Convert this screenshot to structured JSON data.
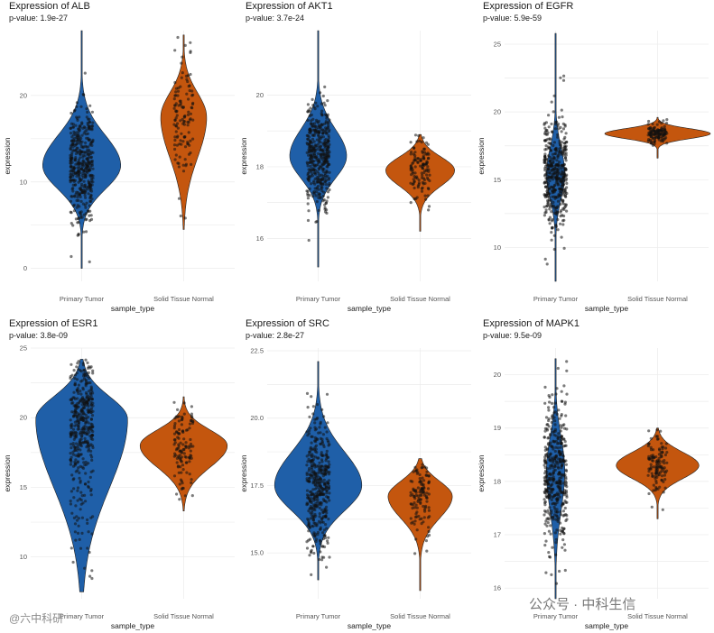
{
  "chart_data": [
    {
      "type": "violin",
      "title": "Expression of ALB",
      "subtitle": "p-value: 1.9e-27",
      "xlabel": "sample_type",
      "ylabel": "expression",
      "categories": [
        "Primary Tumor",
        "Solid Tissue Normal"
      ],
      "ylim": [
        -1.5,
        27.5
      ],
      "yticks": [
        0,
        10,
        20
      ],
      "ytick_labels": [
        "0",
        "10",
        "20"
      ],
      "series": [
        {
          "name": "Primary Tumor",
          "min": 0,
          "max": 27.5,
          "mode": 11.9,
          "q_low": 7.5,
          "q_high": 17.5,
          "width": 0.85,
          "color": "#1f5fa8",
          "n": 420
        },
        {
          "name": "Solid Tissue Normal",
          "min": 4.5,
          "max": 27,
          "mode": 17.5,
          "q_low": 10,
          "q_high": 22,
          "width": 0.5,
          "color": "#c4560e",
          "n": 120
        }
      ]
    },
    {
      "type": "violin",
      "title": "Expression of AKT1",
      "subtitle": "p-value: 3.7e-24",
      "xlabel": "sample_type",
      "ylabel": "expression",
      "categories": [
        "Primary Tumor",
        "Solid Tissue Normal"
      ],
      "ylim": [
        14.8,
        21.8
      ],
      "yticks": [
        16,
        18,
        20
      ],
      "ytick_labels": [
        "16",
        "18",
        "20"
      ],
      "series": [
        {
          "name": "Primary Tumor",
          "min": 15.2,
          "max": 21.8,
          "mode": 18.3,
          "q_low": 17.3,
          "q_high": 19.5,
          "width": 0.62,
          "color": "#1f5fa8",
          "n": 420
        },
        {
          "name": "Solid Tissue Normal",
          "min": 16.2,
          "max": 18.9,
          "mode": 17.9,
          "q_low": 17.2,
          "q_high": 18.5,
          "width": 0.75,
          "color": "#c4560e",
          "n": 120
        }
      ]
    },
    {
      "type": "violin",
      "title": "Expression of EGFR",
      "subtitle": "p-value: 5.9e-59",
      "xlabel": "sample_type",
      "ylabel": "expression",
      "categories": [
        "Primary Tumor",
        "Solid Tissue Normal"
      ],
      "ylim": [
        7.5,
        26
      ],
      "yticks": [
        10,
        15,
        20,
        25
      ],
      "ytick_labels": [
        "10",
        "15",
        "20",
        "25"
      ],
      "series": [
        {
          "name": "Primary Tumor",
          "min": 7.5,
          "max": 25.8,
          "mode": 15.4,
          "q_low": 12.5,
          "q_high": 18.5,
          "width": 0.2,
          "color": "#1f5fa8",
          "n": 420
        },
        {
          "name": "Solid Tissue Normal",
          "min": 16.6,
          "max": 19.6,
          "mode": 18.4,
          "q_low": 17.8,
          "q_high": 19.0,
          "width": 1.15,
          "color": "#c4560e",
          "n": 120
        }
      ]
    },
    {
      "type": "violin",
      "title": "Expression of ESR1",
      "subtitle": "p-value: 3.8e-09",
      "xlabel": "sample_type",
      "ylabel": "expression",
      "categories": [
        "Primary Tumor",
        "Solid Tissue Normal"
      ],
      "ylim": [
        7,
        25
      ],
      "yticks": [
        10,
        15,
        20,
        25
      ],
      "ytick_labels": [
        "10",
        "15",
        "20",
        "25"
      ],
      "series": [
        {
          "name": "Primary Tumor",
          "min": 7.5,
          "max": 24.2,
          "mode": 19.9,
          "q_low": 12,
          "q_high": 22.5,
          "width": 1.0,
          "color": "#1f5fa8",
          "n": 420
        },
        {
          "name": "Solid Tissue Normal",
          "min": 13.3,
          "max": 21.5,
          "mode": 18.0,
          "q_low": 15.5,
          "q_high": 19.8,
          "width": 0.95,
          "color": "#c4560e",
          "n": 120
        }
      ]
    },
    {
      "type": "violin",
      "title": "Expression of SRC",
      "subtitle": "p-value: 2.8e-27",
      "xlabel": "sample_type",
      "ylabel": "expression",
      "categories": [
        "Primary Tumor",
        "Solid Tissue Normal"
      ],
      "ylim": [
        13.3,
        22.6
      ],
      "yticks": [
        15.0,
        17.5,
        20.0,
        22.5
      ],
      "ytick_labels": [
        "15.0",
        "17.5",
        "20.0",
        "22.5"
      ],
      "series": [
        {
          "name": "Primary Tumor",
          "min": 14.0,
          "max": 22.1,
          "mode": 17.5,
          "q_low": 16.0,
          "q_high": 19.5,
          "width": 0.95,
          "color": "#1f5fa8",
          "n": 420
        },
        {
          "name": "Solid Tissue Normal",
          "min": 13.6,
          "max": 18.5,
          "mode": 17.1,
          "q_low": 15.8,
          "q_high": 18.0,
          "width": 0.7,
          "color": "#c4560e",
          "n": 120
        }
      ]
    },
    {
      "type": "violin",
      "title": "Expression of MAPK1",
      "subtitle": "p-value: 9.5e-09",
      "xlabel": "sample_type",
      "ylabel": "expression",
      "categories": [
        "Primary Tumor",
        "Solid Tissue Normal"
      ],
      "ylim": [
        15.8,
        20.5
      ],
      "yticks": [
        16,
        17,
        18,
        19,
        20
      ],
      "ytick_labels": [
        "16",
        "17",
        "18",
        "19",
        "20"
      ],
      "series": [
        {
          "name": "Primary Tumor",
          "min": 15.8,
          "max": 20.3,
          "mode": 18.2,
          "q_low": 17.0,
          "q_high": 19.2,
          "width": 0.2,
          "color": "#1f5fa8",
          "n": 420
        },
        {
          "name": "Solid Tissue Normal",
          "min": 17.3,
          "max": 19.0,
          "mode": 18.3,
          "q_low": 17.9,
          "q_high": 18.7,
          "width": 0.9,
          "color": "#c4560e",
          "n": 120
        }
      ]
    }
  ],
  "watermark": {
    "left": "@六中科研",
    "right": "公众号 · 中科生信"
  }
}
